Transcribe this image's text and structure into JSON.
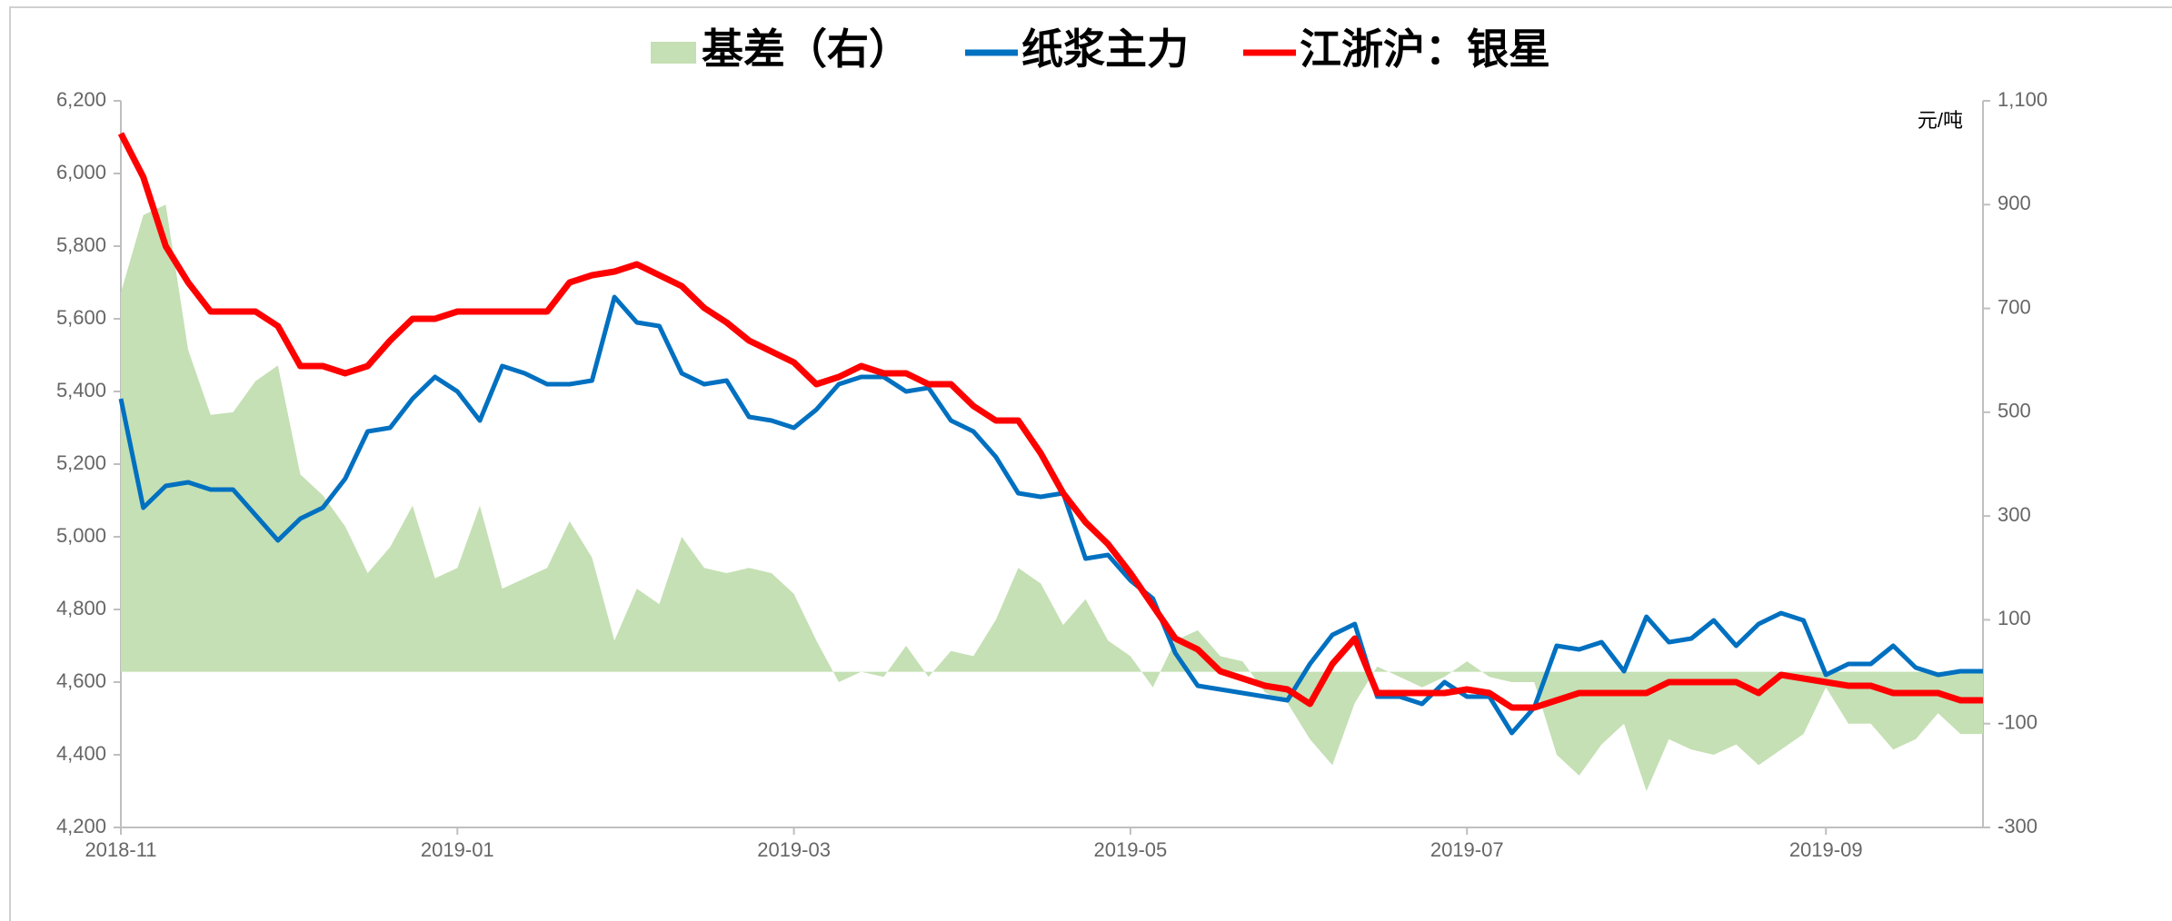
{
  "chart_data": {
    "type": "line",
    "legend": "top",
    "y2label": "元/吨",
    "categories": [
      "2018-11",
      null,
      null,
      null,
      null,
      null,
      null,
      null,
      null,
      null,
      null,
      null,
      null,
      null,
      null,
      "2019-01",
      null,
      null,
      null,
      null,
      null,
      null,
      null,
      null,
      null,
      null,
      null,
      null,
      null,
      null,
      "2019-03",
      null,
      null,
      null,
      null,
      null,
      null,
      null,
      null,
      null,
      null,
      null,
      null,
      null,
      null,
      "2019-05",
      null,
      null,
      null,
      null,
      null,
      null,
      null,
      null,
      null,
      null,
      null,
      null,
      null,
      null,
      "2019-07",
      null,
      null,
      null,
      null,
      null,
      null,
      null,
      null,
      null,
      null,
      null,
      null,
      null,
      null,
      null,
      "2019-09",
      null,
      null,
      null,
      null,
      null,
      null,
      null
    ],
    "series": [
      {
        "name": "基差（右）",
        "type": "area",
        "axis": "y2",
        "color": "#c5e0b4",
        "values": [
          730,
          880,
          900,
          620,
          495,
          500,
          560,
          590,
          380,
          340,
          280,
          190,
          240,
          320,
          180,
          200,
          320,
          160,
          180,
          200,
          290,
          220,
          60,
          160,
          130,
          260,
          200,
          190,
          200,
          190,
          150,
          60,
          -20,
          0,
          -10,
          50,
          -10,
          40,
          30,
          100,
          200,
          170,
          90,
          140,
          60,
          30,
          -30,
          60,
          80,
          30,
          20,
          -40,
          -60,
          -130,
          -180,
          -60,
          10,
          -10,
          -30,
          -10,
          20,
          -10,
          -20,
          -20,
          -160,
          -200,
          -140,
          -100,
          -230,
          -130,
          -150,
          -160,
          -140,
          -180,
          -150,
          -120,
          -30,
          -100,
          -100,
          -150,
          -130,
          -80,
          -120,
          -120
        ]
      },
      {
        "name": "纸浆主力",
        "type": "line",
        "color": "#0070c0",
        "values": [
          5380,
          5080,
          5140,
          5150,
          5130,
          5130,
          5060,
          4990,
          5050,
          5080,
          5160,
          5290,
          5300,
          5380,
          5440,
          5400,
          5320,
          5470,
          5450,
          5420,
          5420,
          5430,
          5660,
          5590,
          5580,
          5450,
          5420,
          5430,
          5330,
          5320,
          5300,
          5350,
          5420,
          5440,
          5440,
          5400,
          5410,
          5320,
          5290,
          5220,
          5120,
          5110,
          5120,
          4940,
          4950,
          4880,
          4830,
          4680,
          4590,
          4580,
          4570,
          4560,
          4550,
          4650,
          4730,
          4760,
          4560,
          4560,
          4540,
          4600,
          4560,
          4560,
          4460,
          4530,
          4700,
          4690,
          4710,
          4630,
          4780,
          4710,
          4720,
          4770,
          4700,
          4760,
          4790,
          4770,
          4620,
          4650,
          4650,
          4700,
          4640,
          4620,
          4630,
          4630
        ]
      },
      {
        "name": "江浙沪：银星",
        "type": "line",
        "color": "#ff0000",
        "values": [
          6110,
          5990,
          5800,
          5700,
          5620,
          5620,
          5620,
          5580,
          5470,
          5470,
          5450,
          5470,
          5540,
          5600,
          5600,
          5620,
          5620,
          5620,
          5620,
          5620,
          5700,
          5720,
          5730,
          5750,
          5720,
          5690,
          5630,
          5590,
          5540,
          5510,
          5480,
          5420,
          5440,
          5470,
          5450,
          5450,
          5420,
          5420,
          5360,
          5320,
          5320,
          5230,
          5120,
          5040,
          4980,
          4900,
          4810,
          4720,
          4690,
          4630,
          4610,
          4590,
          4580,
          4540,
          4650,
          4720,
          4570,
          4570,
          4570,
          4570,
          4580,
          4570,
          4530,
          4530,
          4550,
          4570,
          4570,
          4570,
          4570,
          4600,
          4600,
          4600,
          4600,
          4570,
          4620,
          4610,
          4600,
          4590,
          4590,
          4570,
          4570,
          4570,
          4550,
          4550
        ]
      }
    ],
    "ylim": [
      4200,
      6200
    ],
    "yticks": [
      {
        "value": 4200,
        "label": "4,200"
      },
      {
        "value": 4400,
        "label": "4,400"
      },
      {
        "value": 4600,
        "label": "4,600"
      },
      {
        "value": 4800,
        "label": "4,800"
      },
      {
        "value": 5000,
        "label": "5,000"
      },
      {
        "value": 5200,
        "label": "5,200"
      },
      {
        "value": 5400,
        "label": "5,400"
      },
      {
        "value": 5600,
        "label": "5,600"
      },
      {
        "value": 5800,
        "label": "5,800"
      },
      {
        "value": 6000,
        "label": "6,000"
      },
      {
        "value": 6200,
        "label": "6,200"
      }
    ],
    "y2lim": [
      -300,
      1100
    ],
    "y2ticks": [
      -300,
      -100,
      100,
      300,
      500,
      700,
      900,
      {
        "value": 1100,
        "label": "1,100"
      }
    ],
    "grid": false
  }
}
